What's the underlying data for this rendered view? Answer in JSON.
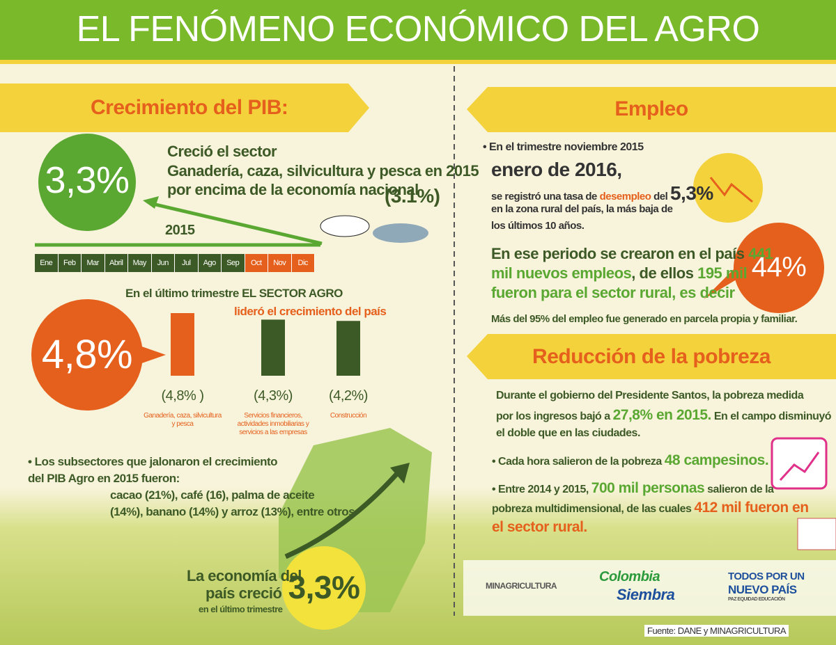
{
  "header": {
    "title": "EL FENÓMENO ECONÓMICO DEL AGRO"
  },
  "pib": {
    "heading": "Crecimiento del PIB:",
    "big_value": "3,3%",
    "lines": [
      "Creció el sector",
      "Ganadería, caza, silvicultura y pesca en 2015",
      "por encima de la economía nacional"
    ],
    "national": "(3.1%)",
    "year": "2015",
    "months": [
      "Ene",
      "Feb",
      "Mar",
      "Abril",
      "May",
      "Jun",
      "Jul",
      "Ago",
      "Sep",
      "Oct",
      "Nov",
      "Dic"
    ]
  },
  "trimestre": {
    "line1_a": "En el último trimestre",
    "line1_b": "EL SECTOR AGRO",
    "line2": "lideró el crecimiento del país",
    "big_value": "4,8%",
    "bars": {
      "values": [
        4.8,
        4.3,
        4.2
      ],
      "value_labels": [
        "(4,8% )",
        "(4,3%)",
        "(4,2%)"
      ],
      "labels": [
        "Ganadería, caza, silvicultura y pesca",
        "Servicios financieros, actividades inmobiliarias y servicios a las empresas",
        "Construcción"
      ],
      "colors": [
        "#e5601c",
        "#3b5a25",
        "#3b5a25"
      ]
    }
  },
  "subsectores": {
    "lines": [
      "• Los subsectores que jalonaron el crecimiento",
      "del PIB Agro en 2015 fueron:",
      "cacao (21%), café (16), palma de aceite",
      "(14%), banano (14%) y arroz (13%), entre otros"
    ]
  },
  "economia": {
    "line1": "La economía del",
    "line2": "país creció",
    "value": "3,3%",
    "note": "en el último trimestre"
  },
  "empleo": {
    "heading": "Empleo",
    "bullet": "• En el trimestre noviembre 2015",
    "date": "enero de 2016,",
    "rate_a": "se registró una tasa de",
    "rate_b": "desempleo",
    "rate_c": "del",
    "rate_value": "5,3%",
    "rural_lines": [
      "en la zona rural del país, la más baja de",
      "los últimos 10 años."
    ],
    "new_a": "En ese periodo se crearon en el país",
    "new_b": "441",
    "new_c": "mil nuevos empleos",
    "new_d": ", de ellos",
    "new_e": "195 mil",
    "new_f": "fueron para el sector rural, es decir",
    "percent": "44%",
    "note": "Más del 95% del empleo fue generado en parcela propia y familiar."
  },
  "pobreza": {
    "heading": "Reducción de la pobreza",
    "p1_line1": "Durante el gobierno del Presidente Santos, la pobreza medida",
    "p1_a": "por los ingresos bajó a",
    "p1_b": "27,8% en 2015.",
    "p1_c": "En el campo disminuyó",
    "p1_line3": "el doble que en las ciudades.",
    "b1_a": "• Cada hora salieron de la pobreza",
    "b1_b": "48 campesinos.",
    "b2_a": "• Entre 2014 y 2015,",
    "b2_b": "700 mil personas",
    "b2_c": "salieron de la",
    "b2_d": "pobreza multidimensional, de las cuales",
    "b2_e": "412 mil fueron en",
    "b2_f": "el sector rural."
  },
  "logos": {
    "ministry": "MINAGRICULTURA",
    "colombia": "Colombia",
    "siembra": "Siembra",
    "todos_1": "TODOS POR UN",
    "todos_2": "NUEVO PAÍS",
    "todos_3": "PAZ EQUIDAD EDUCACIÓN"
  },
  "source": "Fuente: DANE y MINAGRICULTURA"
}
